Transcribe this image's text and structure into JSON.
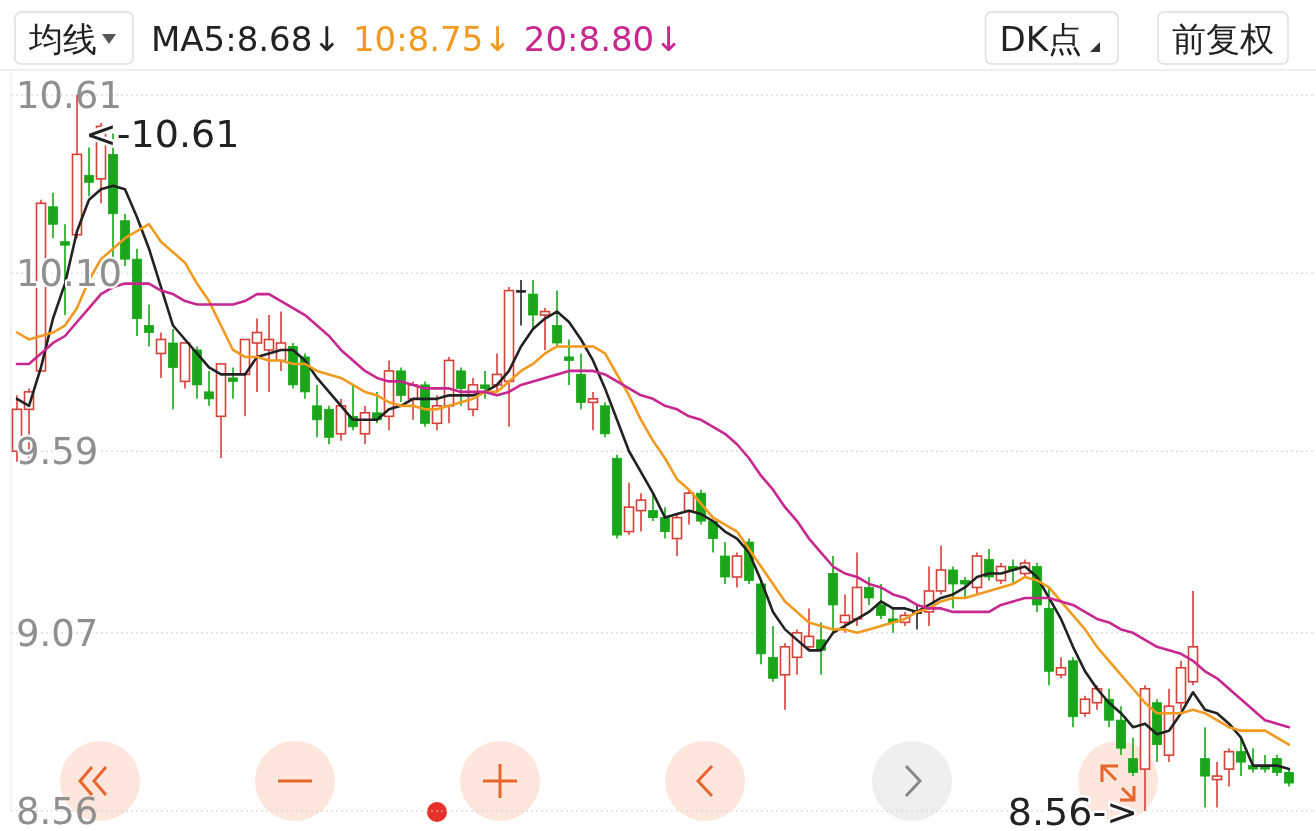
{
  "chart_data": {
    "type": "candlestick",
    "categories": [
      null,
      null,
      null,
      null,
      null,
      null,
      null,
      null,
      null,
      null,
      null,
      null,
      null,
      null,
      null,
      null,
      null,
      null,
      null,
      null,
      null,
      null,
      null,
      null,
      null,
      null,
      null,
      null,
      null,
      null,
      null,
      null,
      null,
      null,
      null,
      null,
      null,
      null,
      null,
      null,
      null,
      null,
      null,
      null,
      null,
      null,
      null,
      null,
      null,
      null,
      null,
      null,
      null,
      null,
      null,
      null,
      null,
      null,
      null,
      null,
      null,
      null,
      null,
      null,
      null,
      null,
      null,
      null,
      null,
      null,
      null,
      null,
      null,
      null,
      null,
      null,
      null,
      null,
      null,
      null,
      null,
      null,
      null,
      null,
      null,
      null,
      null,
      null,
      null,
      null,
      null,
      null,
      null,
      null,
      null,
      null,
      null,
      null,
      null,
      null,
      null,
      null,
      null,
      null,
      null,
      null,
      null
    ],
    "ohlc": [
      [
        9.59,
        9.75,
        9.56,
        9.71
      ],
      [
        9.71,
        9.77,
        9.57,
        9.76
      ],
      [
        9.82,
        10.31,
        9.82,
        10.3
      ],
      [
        10.29,
        10.33,
        10.2,
        10.24
      ],
      [
        10.19,
        10.24,
        9.98,
        10.18
      ],
      [
        10.21,
        10.61,
        10.2,
        10.44
      ],
      [
        10.38,
        10.46,
        10.32,
        10.36
      ],
      [
        10.37,
        10.53,
        10.3,
        10.52
      ],
      [
        10.44,
        10.5,
        10.14,
        10.27
      ],
      [
        10.25,
        10.27,
        10.12,
        10.14
      ],
      [
        10.14,
        10.17,
        9.92,
        9.97
      ],
      [
        9.95,
        10.01,
        9.89,
        9.93
      ],
      [
        9.87,
        9.93,
        9.8,
        9.91
      ],
      [
        9.9,
        9.94,
        9.71,
        9.83
      ],
      [
        9.79,
        9.9,
        9.77,
        9.9
      ],
      [
        9.88,
        9.89,
        9.74,
        9.78
      ],
      [
        9.76,
        9.82,
        9.72,
        9.74
      ],
      [
        9.69,
        9.84,
        9.57,
        9.84
      ],
      [
        9.8,
        9.83,
        9.74,
        9.79
      ],
      [
        9.81,
        9.91,
        9.69,
        9.91
      ],
      [
        9.9,
        9.97,
        9.76,
        9.93
      ],
      [
        9.88,
        9.98,
        9.76,
        9.91
      ],
      [
        9.85,
        9.99,
        9.82,
        9.9
      ],
      [
        9.89,
        9.9,
        9.77,
        9.78
      ],
      [
        9.86,
        9.87,
        9.74,
        9.76
      ],
      [
        9.72,
        9.78,
        9.63,
        9.68
      ],
      [
        9.71,
        9.72,
        9.61,
        9.63
      ],
      [
        9.64,
        9.74,
        9.62,
        9.72
      ],
      [
        9.69,
        9.78,
        9.65,
        9.66
      ],
      [
        9.64,
        9.72,
        9.61,
        9.7
      ],
      [
        9.7,
        9.76,
        9.67,
        9.68
      ],
      [
        9.69,
        9.85,
        9.65,
        9.82
      ],
      [
        9.82,
        9.83,
        9.73,
        9.75
      ],
      [
        9.74,
        9.79,
        9.68,
        9.78
      ],
      [
        9.78,
        9.79,
        9.66,
        9.67
      ],
      [
        9.67,
        9.75,
        9.65,
        9.72
      ],
      [
        9.72,
        9.86,
        9.67,
        9.85
      ],
      [
        9.82,
        9.83,
        9.72,
        9.77
      ],
      [
        9.71,
        9.8,
        9.69,
        9.78
      ],
      [
        9.78,
        9.82,
        9.74,
        9.77
      ],
      [
        9.78,
        9.87,
        9.76,
        9.81
      ],
      [
        9.79,
        10.06,
        9.66,
        10.05
      ],
      [
        10.05,
        10.08,
        9.95,
        10.05
      ],
      [
        10.04,
        10.08,
        9.94,
        9.98
      ],
      [
        9.98,
        10.0,
        9.88,
        9.99
      ],
      [
        9.95,
        10.05,
        9.89,
        9.9
      ],
      [
        9.86,
        9.91,
        9.78,
        9.85
      ],
      [
        9.81,
        9.87,
        9.71,
        9.73
      ],
      [
        9.73,
        9.76,
        9.65,
        9.74
      ],
      [
        9.72,
        9.73,
        9.63,
        9.64
      ],
      [
        9.57,
        9.58,
        9.34,
        9.35
      ],
      [
        9.36,
        9.5,
        9.35,
        9.43
      ],
      [
        9.42,
        9.47,
        9.36,
        9.45
      ],
      [
        9.42,
        9.47,
        9.39,
        9.4
      ],
      [
        9.4,
        9.43,
        9.34,
        9.36
      ],
      [
        9.34,
        9.41,
        9.29,
        9.4
      ],
      [
        9.42,
        9.48,
        9.38,
        9.47
      ],
      [
        9.47,
        9.48,
        9.38,
        9.39
      ],
      [
        9.39,
        9.39,
        9.3,
        9.34
      ],
      [
        9.29,
        9.33,
        9.21,
        9.23
      ],
      [
        9.23,
        9.3,
        9.2,
        9.29
      ],
      [
        9.33,
        9.34,
        9.21,
        9.22
      ],
      [
        9.21,
        9.22,
        8.98,
        9.01
      ],
      [
        9.0,
        9.09,
        8.93,
        8.94
      ],
      [
        8.95,
        9.04,
        8.85,
        9.03
      ],
      [
        9.0,
        9.08,
        8.95,
        9.07
      ],
      [
        9.03,
        9.14,
        9.02,
        9.06
      ],
      [
        9.05,
        9.1,
        8.95,
        9.02
      ],
      [
        9.24,
        9.29,
        9.07,
        9.15
      ],
      [
        9.1,
        9.18,
        9.07,
        9.12
      ],
      [
        9.11,
        9.3,
        9.09,
        9.2
      ],
      [
        9.2,
        9.23,
        9.15,
        9.17
      ],
      [
        9.15,
        9.21,
        9.11,
        9.12
      ],
      [
        9.11,
        9.14,
        9.07,
        9.1
      ],
      [
        9.1,
        9.13,
        9.09,
        9.12
      ],
      [
        9.13,
        9.15,
        9.08,
        9.13
      ],
      [
        9.13,
        9.26,
        9.09,
        9.19
      ],
      [
        9.19,
        9.32,
        9.18,
        9.25
      ],
      [
        9.25,
        9.26,
        9.14,
        9.21
      ],
      [
        9.22,
        9.23,
        9.17,
        9.21
      ],
      [
        9.2,
        9.3,
        9.18,
        9.29
      ],
      [
        9.28,
        9.31,
        9.22,
        9.23
      ],
      [
        9.22,
        9.27,
        9.21,
        9.26
      ],
      [
        9.26,
        9.28,
        9.21,
        9.25
      ],
      [
        9.24,
        9.28,
        9.23,
        9.27
      ],
      [
        9.26,
        9.27,
        9.13,
        9.15
      ],
      [
        9.14,
        9.2,
        8.92,
        8.96
      ],
      [
        8.95,
        9.0,
        8.94,
        8.97
      ],
      [
        8.99,
        9.0,
        8.8,
        8.83
      ],
      [
        8.84,
        8.89,
        8.83,
        8.88
      ],
      [
        8.87,
        8.92,
        8.85,
        8.91
      ],
      [
        8.88,
        8.91,
        8.8,
        8.82
      ],
      [
        8.82,
        8.86,
        8.72,
        8.74
      ],
      [
        8.71,
        8.77,
        8.66,
        8.67
      ],
      [
        8.68,
        8.92,
        8.56,
        8.91
      ],
      [
        8.87,
        8.88,
        8.7,
        8.75
      ],
      [
        8.72,
        8.91,
        8.7,
        8.86
      ],
      [
        8.87,
        8.99,
        8.85,
        8.97
      ],
      [
        8.93,
        9.19,
        8.92,
        9.03
      ],
      [
        8.71,
        8.8,
        8.57,
        8.66
      ],
      [
        8.65,
        8.7,
        8.57,
        8.66
      ],
      [
        8.68,
        8.74,
        8.63,
        8.73
      ],
      [
        8.73,
        8.77,
        8.66,
        8.7
      ],
      [
        8.69,
        8.74,
        8.67,
        8.68
      ],
      [
        8.69,
        8.72,
        8.67,
        8.68
      ],
      [
        8.71,
        8.72,
        8.66,
        8.67
      ],
      [
        8.67,
        8.68,
        8.63,
        8.64
      ]
    ],
    "series": [
      {
        "name": "MA5:8.68↓",
        "type": "line",
        "color": "#222222",
        "values": [
          9.74,
          9.72,
          9.83,
          9.97,
          10.07,
          10.22,
          10.31,
          10.34,
          10.35,
          10.34,
          10.26,
          10.17,
          10.06,
          9.95,
          9.91,
          9.87,
          9.83,
          9.81,
          9.81,
          9.81,
          9.86,
          9.87,
          9.88,
          9.88,
          9.85,
          9.8,
          9.76,
          9.72,
          9.68,
          9.68,
          9.68,
          9.71,
          9.72,
          9.74,
          9.74,
          9.74,
          9.75,
          9.75,
          9.75,
          9.76,
          9.78,
          9.82,
          9.89,
          9.94,
          9.97,
          9.99,
          9.96,
          9.91,
          9.85,
          9.77,
          9.68,
          9.59,
          9.53,
          9.47,
          9.4,
          9.41,
          9.42,
          9.41,
          9.39,
          9.36,
          9.34,
          9.3,
          9.22,
          9.13,
          9.08,
          9.05,
          9.02,
          9.02,
          9.07,
          9.09,
          9.11,
          9.13,
          9.16,
          9.14,
          9.14,
          9.13,
          9.15,
          9.17,
          9.18,
          9.2,
          9.23,
          9.24,
          9.24,
          9.25,
          9.26,
          9.23,
          9.17,
          9.11,
          9.03,
          8.96,
          8.91,
          8.87,
          8.84,
          8.8,
          8.81,
          8.78,
          8.79,
          8.84,
          8.9,
          8.85,
          8.84,
          8.81,
          8.77,
          8.69,
          8.69,
          8.69,
          8.68
        ]
      },
      {
        "name": "10:8.75↓",
        "type": "line",
        "color": "#f29a1f",
        "values": [
          9.93,
          9.91,
          9.92,
          9.93,
          9.95,
          10.0,
          10.08,
          10.14,
          10.17,
          10.2,
          10.22,
          10.24,
          10.19,
          10.16,
          10.13,
          10.07,
          10.02,
          9.95,
          9.88,
          9.86,
          9.86,
          9.85,
          9.85,
          9.84,
          9.84,
          9.82,
          9.81,
          9.8,
          9.78,
          9.76,
          9.75,
          9.73,
          9.72,
          9.72,
          9.71,
          9.71,
          9.72,
          9.73,
          9.74,
          9.76,
          9.76,
          9.79,
          9.82,
          9.84,
          9.87,
          9.89,
          9.89,
          9.89,
          9.89,
          9.87,
          9.81,
          9.75,
          9.68,
          9.62,
          9.57,
          9.51,
          9.48,
          9.44,
          9.4,
          9.38,
          9.36,
          9.31,
          9.26,
          9.21,
          9.16,
          9.13,
          9.1,
          9.09,
          9.08,
          9.08,
          9.07,
          9.08,
          9.09,
          9.1,
          9.11,
          9.13,
          9.14,
          9.16,
          9.17,
          9.17,
          9.18,
          9.19,
          9.2,
          9.21,
          9.23,
          9.22,
          9.2,
          9.16,
          9.12,
          9.08,
          9.03,
          8.99,
          8.95,
          8.91,
          8.87,
          8.84,
          8.84,
          8.84,
          8.85,
          8.84,
          8.82,
          8.8,
          8.79,
          8.79,
          8.79,
          8.77,
          8.75
        ]
      },
      {
        "name": "20:8.80↓",
        "type": "line",
        "color": "#c8278f",
        "values": [
          9.84,
          9.84,
          9.87,
          9.9,
          9.92,
          9.96,
          10.0,
          10.04,
          10.06,
          10.07,
          10.07,
          10.07,
          10.05,
          10.04,
          10.02,
          10.01,
          10.01,
          10.01,
          10.01,
          10.02,
          10.04,
          10.04,
          10.02,
          10.0,
          9.98,
          9.95,
          9.92,
          9.88,
          9.85,
          9.82,
          9.8,
          9.79,
          9.79,
          9.78,
          9.77,
          9.77,
          9.77,
          9.76,
          9.76,
          9.76,
          9.75,
          9.76,
          9.78,
          9.79,
          9.8,
          9.81,
          9.82,
          9.82,
          9.82,
          9.81,
          9.79,
          9.77,
          9.75,
          9.74,
          9.72,
          9.71,
          9.69,
          9.68,
          9.66,
          9.64,
          9.61,
          9.57,
          9.52,
          9.48,
          9.43,
          9.39,
          9.34,
          9.3,
          9.26,
          9.24,
          9.23,
          9.21,
          9.2,
          9.18,
          9.17,
          9.15,
          9.14,
          9.14,
          9.13,
          9.13,
          9.13,
          9.13,
          9.15,
          9.16,
          9.17,
          9.17,
          9.17,
          9.16,
          9.15,
          9.13,
          9.11,
          9.1,
          9.08,
          9.07,
          9.05,
          9.03,
          9.02,
          9.01,
          8.99,
          8.96,
          8.94,
          8.91,
          8.88,
          8.85,
          8.82,
          8.81,
          8.8
        ]
      }
    ],
    "ylim": [
      8.56,
      10.61
    ],
    "yticks": [
      10.61,
      {
        "value": 10.1,
        "label": "10.10"
      },
      9.59,
      9.07,
      8.56
    ],
    "grid": "y",
    "legend": "top",
    "annotations": [
      "均线",
      "DK点",
      "前复权",
      "<-10.61",
      "8.56->"
    ]
  }
}
